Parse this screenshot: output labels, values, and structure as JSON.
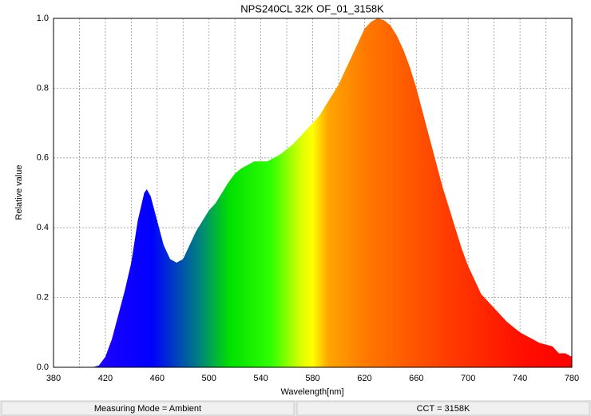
{
  "chart_data": {
    "type": "area",
    "title": "NPS240CL 32K OF_01_3158K",
    "x_label": "Wavelength[nm]",
    "y_label": "Relative value",
    "x": [
      380,
      385,
      390,
      395,
      400,
      405,
      410,
      415,
      420,
      425,
      430,
      435,
      440,
      445,
      450,
      452,
      455,
      460,
      465,
      470,
      475,
      480,
      485,
      490,
      495,
      500,
      505,
      510,
      515,
      520,
      525,
      530,
      535,
      540,
      545,
      550,
      555,
      560,
      565,
      570,
      575,
      580,
      585,
      590,
      595,
      600,
      605,
      610,
      615,
      620,
      625,
      630,
      635,
      640,
      645,
      650,
      655,
      660,
      665,
      670,
      675,
      680,
      685,
      690,
      695,
      700,
      705,
      710,
      715,
      720,
      725,
      730,
      735,
      740,
      745,
      750,
      755,
      760,
      765,
      770,
      775,
      780
    ],
    "values": [
      0,
      0,
      0,
      0,
      0,
      0,
      0,
      0.005,
      0.03,
      0.08,
      0.15,
      0.22,
      0.3,
      0.42,
      0.5,
      0.51,
      0.49,
      0.42,
      0.35,
      0.31,
      0.3,
      0.31,
      0.35,
      0.39,
      0.42,
      0.45,
      0.47,
      0.5,
      0.53,
      0.555,
      0.57,
      0.58,
      0.59,
      0.59,
      0.59,
      0.6,
      0.61,
      0.625,
      0.64,
      0.66,
      0.68,
      0.7,
      0.72,
      0.75,
      0.78,
      0.81,
      0.85,
      0.89,
      0.93,
      0.97,
      0.99,
      1.0,
      0.995,
      0.98,
      0.95,
      0.91,
      0.86,
      0.8,
      0.73,
      0.66,
      0.59,
      0.52,
      0.46,
      0.4,
      0.34,
      0.29,
      0.25,
      0.21,
      0.19,
      0.17,
      0.15,
      0.13,
      0.115,
      0.1,
      0.09,
      0.08,
      0.07,
      0.065,
      0.06,
      0.04,
      0.04,
      0.03
    ],
    "xlim": [
      380,
      780
    ],
    "ylim": [
      0,
      1
    ],
    "xticks": [
      380,
      420,
      460,
      500,
      540,
      580,
      620,
      660,
      700,
      740,
      780
    ],
    "x_minor_ticks": [
      400,
      440,
      480,
      520,
      560,
      600,
      640,
      680,
      720,
      760
    ],
    "yticks": [
      {
        "value": 0,
        "label": "0.0"
      },
      0.2,
      0.4,
      0.6,
      0.8,
      {
        "value": 1,
        "label": "1.0"
      }
    ],
    "grid": true
  },
  "status_bar": {
    "left": "Measuring Mode = Ambient",
    "right": "CCT = 3158K"
  }
}
